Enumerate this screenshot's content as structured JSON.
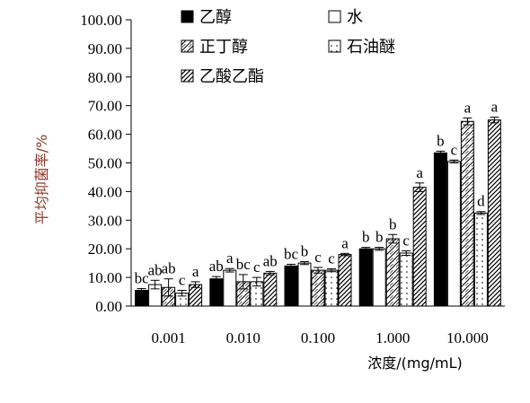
{
  "chart_data": {
    "type": "bar",
    "title": "",
    "xlabel": "浓度/(mg/mL)",
    "ylabel": "平均抑菌率/%",
    "ylim": [
      0,
      100
    ],
    "yticks": [
      "0.00",
      "10.00",
      "20.00",
      "30.00",
      "40.00",
      "50.00",
      "60.00",
      "70.00",
      "80.00",
      "90.00",
      "100.00"
    ],
    "categories": [
      "0.001",
      "0.010",
      "0.100",
      "1.000",
      "10.000"
    ],
    "legend_placement": "top",
    "series": [
      {
        "name": "乙醇",
        "pattern": "solid-black",
        "values": [
          5.5,
          9.5,
          14.0,
          20.0,
          53.5
        ],
        "errors": [
          0.6,
          0.8,
          0.6,
          0.5,
          0.6
        ],
        "labels": [
          "bc",
          "ab",
          "bc",
          "b",
          "b"
        ]
      },
      {
        "name": "水",
        "pattern": "white",
        "values": [
          7.5,
          12.5,
          15.0,
          20.0,
          50.5
        ],
        "errors": [
          1.5,
          0.6,
          0.5,
          0.5,
          0.5
        ],
        "labels": [
          "ab",
          "a",
          "b",
          "b",
          "c"
        ]
      },
      {
        "name": "正丁醇",
        "pattern": "hatch-diagonal",
        "values": [
          6.5,
          8.5,
          12.5,
          23.5,
          64.5
        ],
        "errors": [
          3.0,
          2.5,
          1.0,
          1.5,
          1.2
        ],
        "labels": [
          "ab",
          "bc",
          "c",
          "b",
          "a"
        ]
      },
      {
        "name": "石油醚",
        "pattern": "dotted",
        "values": [
          4.5,
          8.5,
          12.5,
          18.5,
          32.5
        ],
        "errors": [
          1.0,
          1.5,
          0.5,
          0.8,
          0.5
        ],
        "labels": [
          "c",
          "c",
          "c",
          "c",
          "d"
        ]
      },
      {
        "name": "乙酸乙酯",
        "pattern": "hatch-dense",
        "values": [
          7.5,
          11.5,
          18.0,
          41.5,
          65.0
        ],
        "errors": [
          1.0,
          0.6,
          0.4,
          1.5,
          1.0
        ],
        "labels": [
          "a",
          "ab",
          "a",
          "a",
          "a"
        ]
      }
    ]
  }
}
